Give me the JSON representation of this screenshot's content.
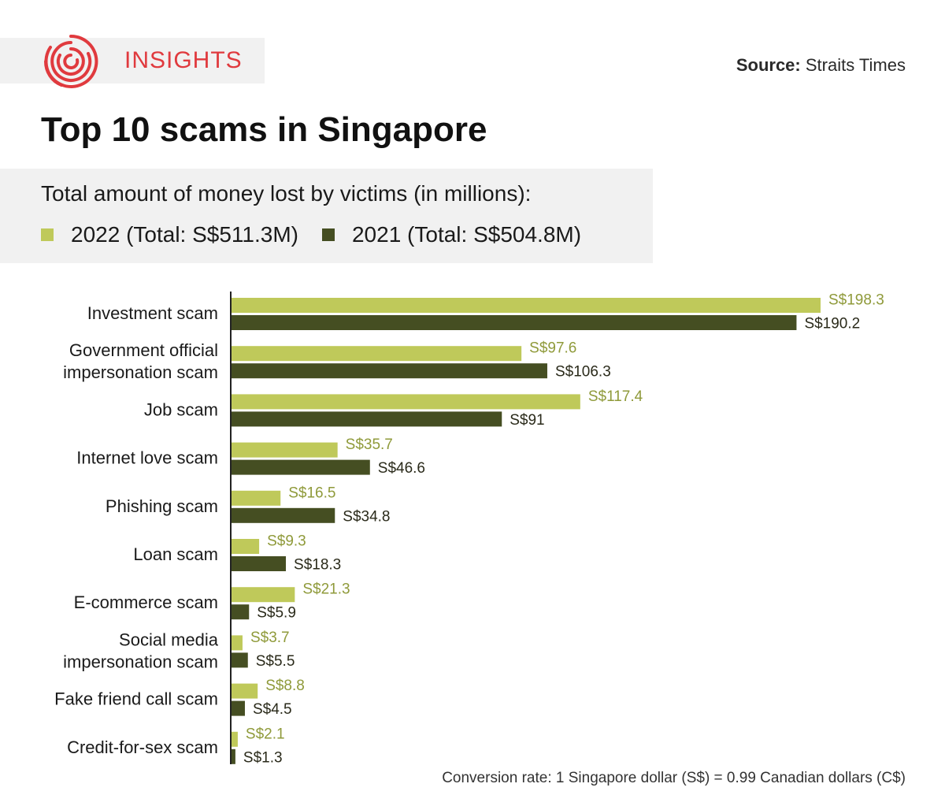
{
  "brand": {
    "name": "INSIGHTS",
    "logo_icon": "concentric-circles-icon",
    "accent": "#e03a3e"
  },
  "source": {
    "label": "Source:",
    "value": " Straits Times"
  },
  "colors": {
    "y2022": "#bfc95a",
    "y2021": "#454e22",
    "label2022": "#8f9a3a",
    "label2021": "#2a2a1a"
  },
  "chart_data": {
    "type": "bar",
    "orientation": "horizontal",
    "title": "Top 10 scams in Singapore",
    "subtitle": "Total amount of money lost by victims (in millions):",
    "categories": [
      [
        "Investment scam"
      ],
      [
        "Government official",
        "impersonation scam"
      ],
      [
        "Job scam"
      ],
      [
        "Internet love scam"
      ],
      [
        "Phishing scam"
      ],
      [
        "Loan scam"
      ],
      [
        "E-commerce scam"
      ],
      [
        "Social media",
        "impersonation scam"
      ],
      [
        "Fake friend call scam"
      ],
      [
        "Credit-for-sex scam"
      ]
    ],
    "series": [
      {
        "name": "2022 (Total: S$511.3M)",
        "values": [
          198.3,
          97.6,
          117.4,
          35.7,
          16.5,
          9.3,
          21.3,
          3.7,
          8.8,
          2.1
        ],
        "labels": [
          "S$198.3",
          "S$97.6",
          "S$117.4",
          "S$35.7",
          "S$16.5",
          "S$9.3",
          "S$21.3",
          "S$3.7",
          "S$8.8",
          "S$2.1"
        ]
      },
      {
        "name": "2021 (Total: S$504.8M)",
        "values": [
          190.2,
          106.3,
          91,
          46.6,
          34.8,
          18.3,
          5.9,
          5.5,
          4.5,
          1.3
        ],
        "labels": [
          "S$190.2",
          "S$106.3",
          "S$91",
          "S$46.6",
          "S$34.8",
          "S$18.3",
          "S$5.9",
          "S$5.5",
          "S$4.5",
          "S$1.3"
        ]
      }
    ],
    "xlim": [
      0,
      198.3
    ],
    "grid": false,
    "legend": "top-left"
  },
  "footnote": "Conversion rate: 1 Singapore dollar (S$) = 0.99 Canadian dollars (C$)"
}
